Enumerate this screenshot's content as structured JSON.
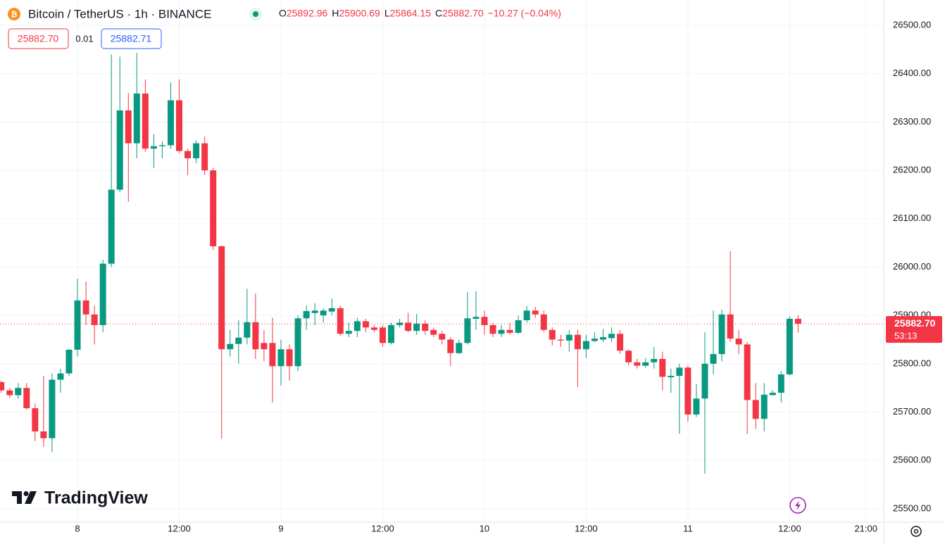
{
  "chart_data": {
    "type": "candlestick",
    "title": "Bitcoin / TetherUS · 1h · BINANCE",
    "header": {
      "ohlc": [
        {
          "key": "O",
          "value": "25892.96"
        },
        {
          "key": "H",
          "value": "25900.69"
        },
        {
          "key": "L",
          "value": "25864.15"
        },
        {
          "key": "C",
          "value": "25882.70"
        }
      ],
      "change": "−10.27 (−0.04%)"
    },
    "sell_price": "25882.70",
    "spread": "0.01",
    "buy_price": "25882.71",
    "last_price_label": "25882.70",
    "countdown": "53:13",
    "watermark": "TradingView",
    "up_color": "#089981",
    "down_color": "#f23645",
    "grid": true,
    "x": [
      -9,
      -8,
      -7,
      -6,
      -5,
      -4,
      -3,
      -2,
      -1,
      0,
      1,
      2,
      3,
      4,
      5,
      6,
      7,
      8,
      9,
      10,
      11,
      12,
      13,
      14,
      15,
      16,
      17,
      18,
      19,
      20,
      21,
      22,
      23,
      24,
      25,
      26,
      27,
      28,
      29,
      30,
      31,
      32,
      33,
      34,
      35,
      36,
      37,
      38,
      39,
      40,
      41,
      42,
      43,
      44,
      45,
      46,
      47,
      48,
      49,
      50,
      51,
      52,
      53,
      54,
      55,
      56,
      57,
      58,
      59,
      60,
      61,
      62,
      63,
      64,
      65,
      66,
      67,
      68,
      69,
      70,
      71,
      72,
      73,
      74,
      75,
      76,
      77,
      78,
      79,
      80,
      81,
      82,
      83,
      84,
      85
    ],
    "open": [
      25762,
      25745,
      25735,
      25750,
      25708,
      25660,
      25646,
      25767,
      25780,
      25829,
      25931,
      25902,
      25880,
      26007,
      26160,
      26324,
      26256,
      26359,
      26245,
      26250,
      26252,
      26345,
      26240,
      26225,
      26256,
      26200,
      26043,
      25830,
      25841,
      25854,
      25886,
      25843,
      25843,
      25795,
      25830,
      25795,
      25894,
      25905,
      25900,
      25908,
      25915,
      25862,
      25868,
      25888,
      25875,
      25875,
      25843,
      25880,
      25885,
      25868,
      25883,
      25870,
      25862,
      25850,
      25822,
      25843,
      25893,
      25897,
      25880,
      25862,
      25870,
      25864,
      25890,
      25910,
      25902,
      25870,
      25850,
      25848,
      25860,
      25830,
      25847,
      25850,
      25853,
      25862,
      25827,
      25803,
      25796,
      25803,
      25810,
      25772,
      25775,
      25792,
      25695,
      25728,
      25800,
      25820,
      25902,
      25852,
      25840,
      25725,
      25686,
      25735,
      25740,
      25778,
      25892.96
    ],
    "high": [
      25765,
      25750,
      25760,
      25760,
      25718,
      25775,
      25780,
      25790,
      25830,
      25976,
      25970,
      25920,
      26015,
      26440,
      26435,
      26360,
      26443,
      26388,
      26275,
      26260,
      26382,
      26388,
      26245,
      26262,
      26270,
      26205,
      26045,
      25870,
      25890,
      25955,
      25945,
      25870,
      25895,
      25850,
      25840,
      25900,
      25920,
      25925,
      25915,
      25935,
      25920,
      25885,
      25895,
      25893,
      25880,
      25880,
      25885,
      25893,
      25905,
      25903,
      25890,
      25875,
      25868,
      25855,
      25850,
      25948,
      25950,
      25910,
      25885,
      25880,
      25885,
      25900,
      25920,
      25918,
      25910,
      25875,
      25860,
      25870,
      25870,
      25860,
      25865,
      25872,
      25875,
      25870,
      25830,
      25810,
      25812,
      25835,
      25825,
      25790,
      25800,
      25797,
      25758,
      25865,
      25910,
      25912,
      26033,
      25870,
      25845,
      25760,
      25760,
      25745,
      25785,
      25898,
      25900.69
    ],
    "low": [
      25740,
      25730,
      25728,
      25705,
      25640,
      25628,
      25617,
      25740,
      25775,
      25815,
      25880,
      25840,
      25865,
      26000,
      26155,
      26135,
      26225,
      26238,
      26205,
      26225,
      26245,
      26235,
      26190,
      26215,
      26190,
      26035,
      25645,
      25815,
      25800,
      25840,
      25810,
      25805,
      25720,
      25755,
      25765,
      25785,
      25870,
      25880,
      25885,
      25900,
      25858,
      25855,
      25855,
      25865,
      25865,
      25835,
      25840,
      25875,
      25865,
      25860,
      25860,
      25855,
      25840,
      25795,
      25820,
      25840,
      25870,
      25860,
      25855,
      25855,
      25860,
      25862,
      25885,
      25895,
      25865,
      25838,
      25835,
      25825,
      25752,
      25812,
      25845,
      25845,
      25845,
      25820,
      25797,
      25790,
      25792,
      25790,
      25745,
      25740,
      25655,
      25680,
      25690,
      25573,
      25778,
      25805,
      25845,
      25820,
      25655,
      25665,
      25660,
      25735,
      25720,
      25776,
      25864.15
    ],
    "close": [
      25745,
      25735,
      25750,
      25708,
      25660,
      25646,
      25767,
      25780,
      25829,
      25931,
      25902,
      25880,
      26007,
      26160,
      26324,
      26256,
      26359,
      26245,
      26250,
      26252,
      26345,
      26240,
      26225,
      26256,
      26200,
      26043,
      25830,
      25841,
      25854,
      25886,
      25830,
      25830,
      25795,
      25830,
      25795,
      25894,
      25909,
      25910,
      25910,
      25915,
      25862,
      25868,
      25888,
      25875,
      25870,
      25843,
      25880,
      25885,
      25868,
      25883,
      25868,
      25860,
      25850,
      25822,
      25843,
      25894,
      25897,
      25880,
      25862,
      25870,
      25864,
      25890,
      25910,
      25902,
      25870,
      25850,
      25848,
      25860,
      25830,
      25847,
      25852,
      25855,
      25862,
      25827,
      25803,
      25796,
      25803,
      25810,
      25773,
      25775,
      25792,
      25695,
      25728,
      25800,
      25820,
      25902,
      25852,
      25840,
      25725,
      25686,
      25736,
      25740,
      25778,
      25893,
      25882.7
    ],
    "xlim": [
      -9.14,
      95.1
    ],
    "xticks": [
      {
        "value": 0,
        "label": "8"
      },
      {
        "value": 12,
        "label": "12:00"
      },
      {
        "value": 24,
        "label": "9"
      },
      {
        "value": 36,
        "label": "12:00"
      },
      {
        "value": 48,
        "label": "10"
      },
      {
        "value": 60,
        "label": "12:00"
      },
      {
        "value": 72,
        "label": "11"
      },
      {
        "value": 84,
        "label": "12:00"
      },
      {
        "value": 93,
        "label": "21:00"
      }
    ],
    "ylim": [
      25472.3,
      26552.4
    ],
    "yticks": [
      {
        "value": 25500,
        "label": "25500.00"
      },
      {
        "value": 25600,
        "label": "25600.00"
      },
      {
        "value": 25700,
        "label": "25700.00"
      },
      {
        "value": 25800,
        "label": "25800.00"
      },
      {
        "value": 25900,
        "label": "25900.00"
      },
      {
        "value": 26000,
        "label": "26000.00"
      },
      {
        "value": 26100,
        "label": "26100.00"
      },
      {
        "value": 26200,
        "label": "26200.00"
      },
      {
        "value": 26300,
        "label": "26300.00"
      },
      {
        "value": 26400,
        "label": "26400.00"
      },
      {
        "value": 26500,
        "label": "26500.00"
      }
    ]
  }
}
